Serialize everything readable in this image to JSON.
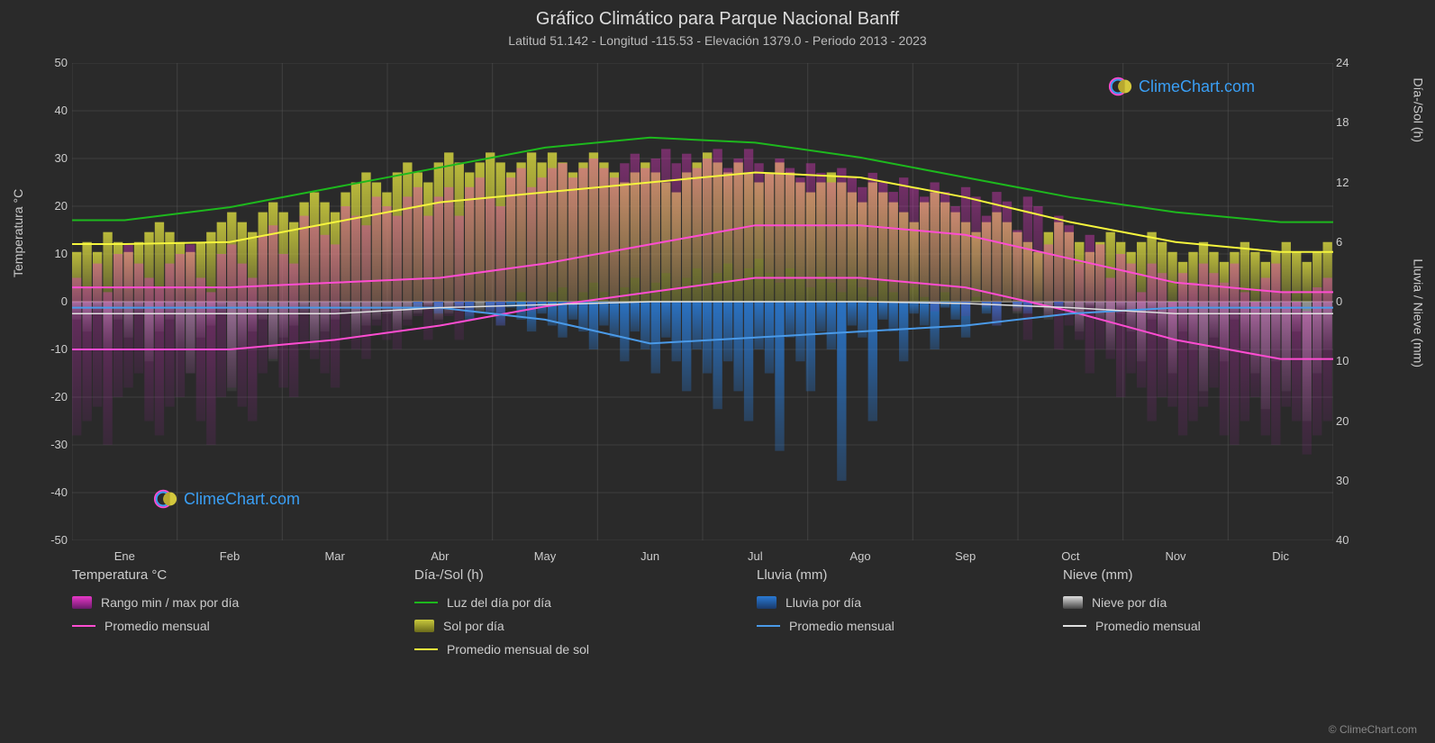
{
  "title": "Gráfico Climático para Parque Nacional Banff",
  "subtitle": "Latitud 51.142 - Longitud -115.53 - Elevación 1379.0 - Periodo 2013 - 2023",
  "y_left_label": "Temperatura °C",
  "y_right_top_label": "Día-/Sol (h)",
  "y_right_bottom_label": "Lluvia / Nieve (mm)",
  "watermark_text": "ClimeChart.com",
  "watermark_color": "#3a9ff5",
  "copyright": "© ClimeChart.com",
  "background": "#2a2a2a",
  "grid_color": "#555555",
  "zero_line_color": "#888888",
  "y_left": {
    "min": -50,
    "max": 50,
    "step": 10,
    "ticks": [
      -50,
      -40,
      -30,
      -20,
      -10,
      0,
      10,
      20,
      30,
      40,
      50
    ]
  },
  "y_right_top": {
    "min": 0,
    "max": 24,
    "step": 6,
    "ticks": [
      0,
      6,
      12,
      18,
      24
    ]
  },
  "y_right_bottom": {
    "min": 0,
    "max": 40,
    "step": 10,
    "ticks": [
      0,
      10,
      20,
      30,
      40
    ]
  },
  "months": [
    "Ene",
    "Feb",
    "Mar",
    "Abr",
    "May",
    "Jun",
    "Jul",
    "Ago",
    "Sep",
    "Oct",
    "Nov",
    "Dic"
  ],
  "colors": {
    "temp_range_gradient_top": "#e838c8",
    "temp_range_gradient_bottom": "#a020a0",
    "temp_avg_line": "#ff4dd2",
    "daylight_line": "#1db81d",
    "sun_bars": "#c9c93d",
    "sun_avg_line": "#f5f53d",
    "rain_bars": "#2a7ad4",
    "rain_avg_line": "#4a9ae8",
    "snow_bars": "#888888",
    "snow_avg_line": "#e0e0e0",
    "logo_ring1": "#ff4dd2",
    "logo_ring2": "#3a9ff5",
    "logo_sphere": "#d4c83d"
  },
  "series": {
    "daylight": [
      8.2,
      9.5,
      11.5,
      13.5,
      15.5,
      16.5,
      16.0,
      14.5,
      12.5,
      10.5,
      9.0,
      8.0
    ],
    "sun_avg": [
      5.8,
      6.0,
      8.0,
      10.0,
      11.0,
      12.0,
      13.0,
      12.5,
      10.5,
      8.0,
      6.0,
      5.0
    ],
    "temp_avg_high": [
      3,
      3,
      4,
      5,
      8,
      12,
      16,
      16,
      14,
      9,
      4,
      2
    ],
    "temp_avg_low": [
      -10,
      -10,
      -8,
      -5,
      -1,
      2,
      5,
      5,
      3,
      -2,
      -8,
      -12
    ],
    "rain_avg": [
      1,
      1,
      1,
      1,
      3,
      7,
      6,
      5,
      4,
      2,
      1,
      1
    ],
    "snow_avg": [
      2,
      2,
      2,
      1,
      0.5,
      0,
      0,
      0,
      0.3,
      1,
      2,
      2
    ]
  },
  "daily_bars": {
    "sun_heights_h": [
      5,
      6,
      5,
      7,
      6,
      5,
      6,
      7,
      8,
      7,
      6,
      5,
      6,
      7,
      8,
      9,
      8,
      7,
      9,
      10,
      9,
      8,
      10,
      11,
      10,
      9,
      11,
      12,
      13,
      12,
      11,
      13,
      14,
      13,
      12,
      14,
      15,
      14,
      13,
      14,
      15,
      14,
      13,
      14,
      15,
      14,
      15,
      14,
      13,
      14,
      15,
      14,
      13,
      12,
      13,
      14,
      13,
      12,
      11,
      13,
      14,
      15,
      14,
      13,
      14,
      13,
      12,
      13,
      14,
      13,
      12,
      11,
      12,
      13,
      12,
      11,
      10,
      12,
      11,
      10,
      9,
      8,
      10,
      11,
      10,
      9,
      8,
      7,
      8,
      9,
      8,
      7,
      6,
      5,
      7,
      8,
      7,
      6,
      5,
      6,
      7,
      6,
      5,
      6,
      7,
      6,
      5,
      4,
      5,
      6,
      5,
      4,
      5,
      6,
      5,
      4,
      5,
      6,
      5,
      4,
      5,
      6
    ],
    "temp_min_c": [
      -28,
      -25,
      -22,
      -30,
      -20,
      -18,
      -15,
      -25,
      -28,
      -22,
      -20,
      -15,
      -25,
      -30,
      -20,
      -18,
      -22,
      -25,
      -15,
      -12,
      -18,
      -20,
      -10,
      -12,
      -15,
      -18,
      -8,
      -10,
      -12,
      -5,
      -8,
      -10,
      -5,
      -3,
      -8,
      -5,
      -3,
      -8,
      -3,
      0,
      -2,
      -5,
      0,
      2,
      -2,
      0,
      2,
      3,
      0,
      2,
      4,
      2,
      0,
      3,
      5,
      2,
      4,
      6,
      3,
      5,
      7,
      4,
      6,
      8,
      5,
      7,
      9,
      6,
      4,
      7,
      5,
      3,
      6,
      4,
      2,
      5,
      3,
      1,
      4,
      2,
      0,
      3,
      1,
      -2,
      2,
      0,
      -3,
      1,
      -1,
      -5,
      0,
      -2,
      -8,
      -1,
      -3,
      -10,
      -5,
      -8,
      -15,
      -10,
      -12,
      -20,
      -15,
      -18,
      -25,
      -20,
      -22,
      -28,
      -25,
      -22,
      -18,
      -28,
      -30,
      -25,
      -20,
      -28,
      -30,
      -22,
      -25,
      -32,
      -28,
      -25
    ],
    "temp_max_c": [
      5,
      3,
      8,
      2,
      10,
      12,
      8,
      5,
      3,
      8,
      10,
      12,
      5,
      2,
      10,
      12,
      8,
      5,
      14,
      16,
      10,
      8,
      18,
      16,
      14,
      12,
      20,
      18,
      16,
      22,
      20,
      18,
      22,
      24,
      18,
      22,
      24,
      18,
      24,
      26,
      22,
      20,
      26,
      28,
      24,
      26,
      28,
      29,
      26,
      28,
      30,
      28,
      26,
      29,
      31,
      28,
      30,
      32,
      29,
      31,
      28,
      30,
      32,
      28,
      30,
      32,
      29,
      27,
      30,
      28,
      26,
      29,
      27,
      25,
      28,
      26,
      24,
      27,
      25,
      23,
      26,
      24,
      22,
      25,
      23,
      20,
      24,
      22,
      18,
      23,
      21,
      15,
      22,
      20,
      12,
      18,
      16,
      8,
      14,
      12,
      5,
      10,
      8,
      2,
      8,
      6,
      0,
      6,
      4,
      8,
      6,
      4,
      8,
      2,
      0,
      5,
      8,
      2,
      0,
      -2,
      3,
      5
    ],
    "rain_mm": [
      0,
      0,
      0,
      0,
      0,
      0,
      0,
      0,
      0,
      0,
      0,
      0,
      0,
      0,
      0,
      0,
      0,
      0,
      0,
      0,
      0,
      0,
      0,
      0,
      0,
      0,
      0,
      0,
      0,
      0,
      0,
      0,
      0,
      1,
      0,
      2,
      0,
      1,
      3,
      0,
      2,
      4,
      1,
      3,
      5,
      2,
      4,
      6,
      3,
      5,
      8,
      4,
      6,
      10,
      5,
      8,
      12,
      6,
      10,
      15,
      8,
      12,
      18,
      10,
      15,
      20,
      8,
      12,
      25,
      6,
      10,
      15,
      5,
      8,
      30,
      4,
      6,
      20,
      3,
      5,
      10,
      2,
      4,
      8,
      1,
      3,
      6,
      0,
      2,
      4,
      0,
      1,
      2,
      0,
      0,
      1,
      0,
      0,
      0,
      0,
      0,
      0,
      0,
      0,
      0,
      0,
      0,
      0,
      0,
      0,
      0,
      0,
      0,
      0,
      0,
      0,
      0,
      0,
      0,
      0,
      0,
      0
    ],
    "snow_mm": [
      3,
      5,
      2,
      8,
      3,
      6,
      2,
      10,
      5,
      3,
      8,
      12,
      6,
      4,
      2,
      15,
      8,
      5,
      3,
      10,
      6,
      4,
      2,
      8,
      5,
      3,
      2,
      6,
      4,
      3,
      2,
      5,
      3,
      2,
      1,
      3,
      2,
      1,
      0,
      2,
      1,
      0,
      0,
      1,
      0,
      0,
      0,
      0,
      0,
      0,
      0,
      0,
      0,
      0,
      0,
      0,
      0,
      0,
      0,
      0,
      0,
      0,
      0,
      0,
      0,
      0,
      0,
      0,
      0,
      0,
      0,
      0,
      0,
      0,
      0,
      0,
      0,
      0,
      0,
      0,
      0,
      0,
      0,
      0,
      0,
      0,
      0,
      0,
      1,
      0,
      0,
      2,
      0,
      1,
      3,
      0,
      2,
      5,
      1,
      3,
      8,
      2,
      5,
      10,
      3,
      6,
      12,
      5,
      8,
      15,
      6,
      10,
      3,
      8,
      12,
      18,
      10,
      15,
      5,
      20,
      12,
      8
    ]
  },
  "legend": {
    "col1_header": "Temperatura °C",
    "col1_item1": "Rango min / max por día",
    "col1_item2": "Promedio mensual",
    "col2_header": "Día-/Sol (h)",
    "col2_item1": "Luz del día por día",
    "col2_item2": "Sol por día",
    "col2_item3": "Promedio mensual de sol",
    "col3_header": "Lluvia (mm)",
    "col3_item1": "Lluvia por día",
    "col3_item2": "Promedio mensual",
    "col4_header": "Nieve (mm)",
    "col4_item1": "Nieve por día",
    "col4_item2": "Promedio mensual"
  }
}
